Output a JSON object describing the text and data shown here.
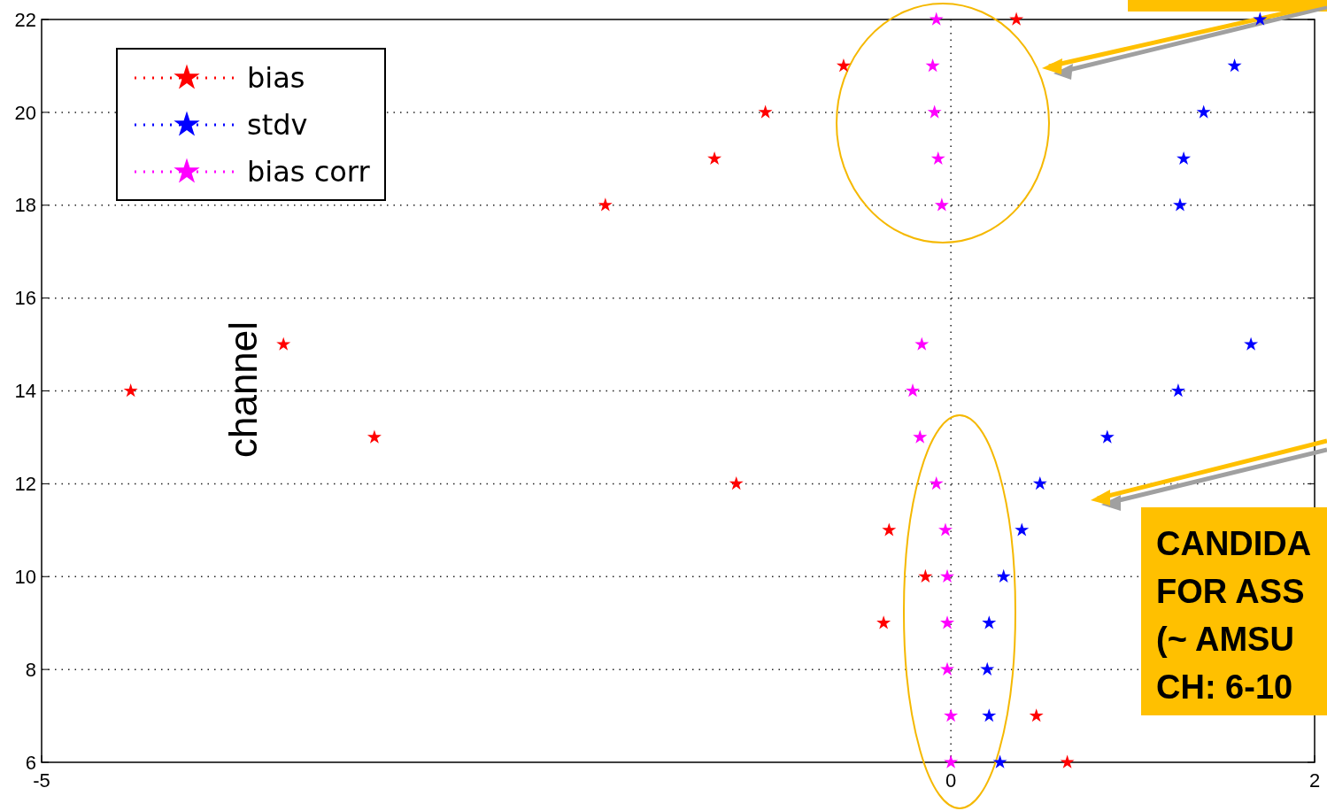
{
  "chart_data": {
    "type": "scatter",
    "ylabel": "channel",
    "series": [
      {
        "name": "bias",
        "color": "#ff0000",
        "x": [
          0.36,
          -0.59,
          -1.02,
          -1.3,
          -1.9,
          -3.67,
          -4.51,
          -3.17,
          -1.18,
          -0.34,
          -0.14,
          -0.37,
          0.47,
          0.64
        ],
        "values": [
          22,
          21,
          20,
          19,
          18,
          15,
          14,
          13,
          12,
          11,
          10,
          9,
          7,
          6
        ]
      },
      {
        "name": "stdv",
        "color": "#0000ff",
        "x": [
          1.7,
          1.56,
          1.39,
          1.28,
          1.26,
          1.65,
          1.25,
          0.86,
          0.49,
          0.39,
          0.29,
          0.21,
          0.2,
          0.21,
          0.27
        ],
        "values": [
          22,
          21,
          20,
          19,
          18,
          15,
          14,
          13,
          12,
          11,
          10,
          9,
          8,
          7,
          6
        ]
      },
      {
        "name": "bias corr",
        "color": "#ff00ff",
        "x": [
          -0.08,
          -0.1,
          -0.09,
          -0.07,
          -0.05,
          -0.16,
          -0.21,
          -0.17,
          -0.08,
          -0.03,
          -0.02,
          -0.02,
          -0.02,
          0,
          0
        ],
        "values": [
          22,
          21,
          20,
          19,
          18,
          15,
          14,
          13,
          12,
          11,
          10,
          9,
          8,
          7,
          6
        ]
      }
    ],
    "xlim": [
      -5,
      2
    ],
    "xticks": [
      -5,
      0,
      2
    ],
    "ylim": [
      6,
      22
    ],
    "yticks": [
      6,
      8,
      10,
      12,
      14,
      16,
      18,
      20,
      22
    ],
    "grid": true,
    "legend": "top left",
    "marker": "star",
    "annotations": [
      "CANDIDA\nFOR ASS\n(~ AMSU\nCH: 6-10"
    ]
  }
}
